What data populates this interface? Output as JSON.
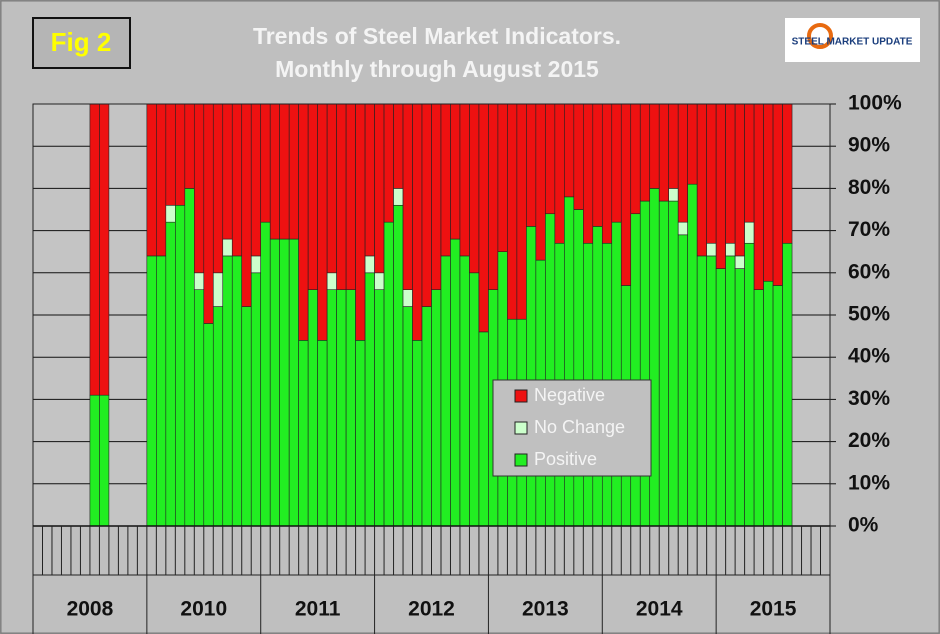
{
  "chart_data": {
    "type": "stacked_bar",
    "title": "Trends of Steel Market Indicators.",
    "subtitle": "Monthly through August 2015",
    "figure_label": "Fig 2",
    "logo": "STEEL MARKET UPDATE",
    "year_labels": [
      "2008",
      "2010",
      "2011",
      "2012",
      "2013",
      "2014",
      "2015"
    ],
    "categories": [
      null,
      null,
      null,
      null,
      null,
      null,
      null,
      null,
      null,
      null,
      null,
      null,
      null,
      null,
      null,
      null,
      null,
      null,
      null,
      null,
      null,
      null,
      null,
      null,
      null,
      null,
      null,
      null,
      null,
      null,
      null,
      null,
      null,
      null,
      null,
      null,
      null,
      null,
      null,
      null,
      null,
      null,
      null,
      null,
      null,
      null,
      null,
      null,
      null,
      null,
      null,
      null,
      null,
      null,
      null,
      null,
      null,
      null,
      null,
      null,
      null,
      null,
      null,
      null,
      null,
      null,
      null,
      null,
      null,
      null,
      null,
      null,
      null,
      null,
      null,
      null,
      null,
      null,
      null,
      null,
      null,
      null,
      null,
      null
    ],
    "series": [
      {
        "name": "Positive",
        "color": "#22ee22",
        "values": [
          null,
          null,
          null,
          null,
          null,
          null,
          31,
          31,
          null,
          null,
          null,
          null,
          64,
          64,
          72,
          76,
          80,
          56,
          48,
          52,
          64,
          64,
          52,
          60,
          72,
          68,
          68,
          68,
          44,
          56,
          44,
          56,
          56,
          56,
          44,
          60,
          56,
          72,
          76,
          52,
          44,
          52,
          56,
          64,
          68,
          64,
          60,
          46,
          56,
          65,
          49,
          49,
          71,
          63,
          74,
          67,
          78,
          75,
          67,
          71,
          67,
          72,
          57,
          74,
          77,
          80,
          77,
          77,
          69,
          81,
          64,
          64,
          61,
          64,
          61,
          67,
          56,
          58,
          57,
          67,
          null,
          null,
          null,
          null
        ]
      },
      {
        "name": "No Change",
        "color": "#ccffcc",
        "values": [
          null,
          null,
          null,
          null,
          null,
          null,
          0,
          0,
          null,
          null,
          null,
          null,
          0,
          0,
          4,
          0,
          0,
          4,
          0,
          8,
          4,
          0,
          0,
          4,
          0,
          0,
          0,
          0,
          0,
          0,
          0,
          4,
          0,
          0,
          0,
          4,
          4,
          0,
          4,
          4,
          0,
          0,
          0,
          0,
          0,
          0,
          0,
          0,
          0,
          0,
          0,
          0,
          0,
          0,
          0,
          0,
          0,
          0,
          0,
          0,
          0,
          0,
          0,
          0,
          0,
          0,
          0,
          3,
          3,
          0,
          0,
          3,
          0,
          3,
          3,
          5,
          0,
          0,
          0,
          0,
          null,
          null,
          null,
          null
        ]
      },
      {
        "name": "Negative",
        "color": "#ee1111",
        "values": [
          null,
          null,
          null,
          null,
          null,
          null,
          69,
          69,
          null,
          null,
          null,
          null,
          36,
          36,
          24,
          24,
          20,
          40,
          52,
          40,
          32,
          36,
          48,
          36,
          28,
          32,
          32,
          32,
          56,
          44,
          56,
          40,
          44,
          44,
          56,
          36,
          40,
          28,
          20,
          44,
          56,
          48,
          44,
          36,
          32,
          36,
          40,
          54,
          44,
          35,
          51,
          51,
          29,
          37,
          26,
          33,
          22,
          25,
          33,
          29,
          33,
          28,
          43,
          26,
          23,
          20,
          23,
          20,
          28,
          19,
          36,
          33,
          39,
          33,
          36,
          28,
          44,
          42,
          43,
          33,
          null,
          null,
          null,
          null
        ]
      }
    ],
    "ylim": [
      0,
      100
    ],
    "yticks": [
      {
        "value": 0,
        "label": "0%"
      },
      {
        "value": 10,
        "label": "10%"
      },
      {
        "value": 20,
        "label": "20%"
      },
      {
        "value": 30,
        "label": "30%"
      },
      {
        "value": 40,
        "label": "40%"
      },
      {
        "value": 50,
        "label": "50%"
      },
      {
        "value": 60,
        "label": "60%"
      },
      {
        "value": 70,
        "label": "70%"
      },
      {
        "value": 80,
        "label": "80%"
      },
      {
        "value": 90,
        "label": "90%"
      },
      {
        "value": 100,
        "label": "100%"
      }
    ],
    "grid": true,
    "legend": "center"
  }
}
